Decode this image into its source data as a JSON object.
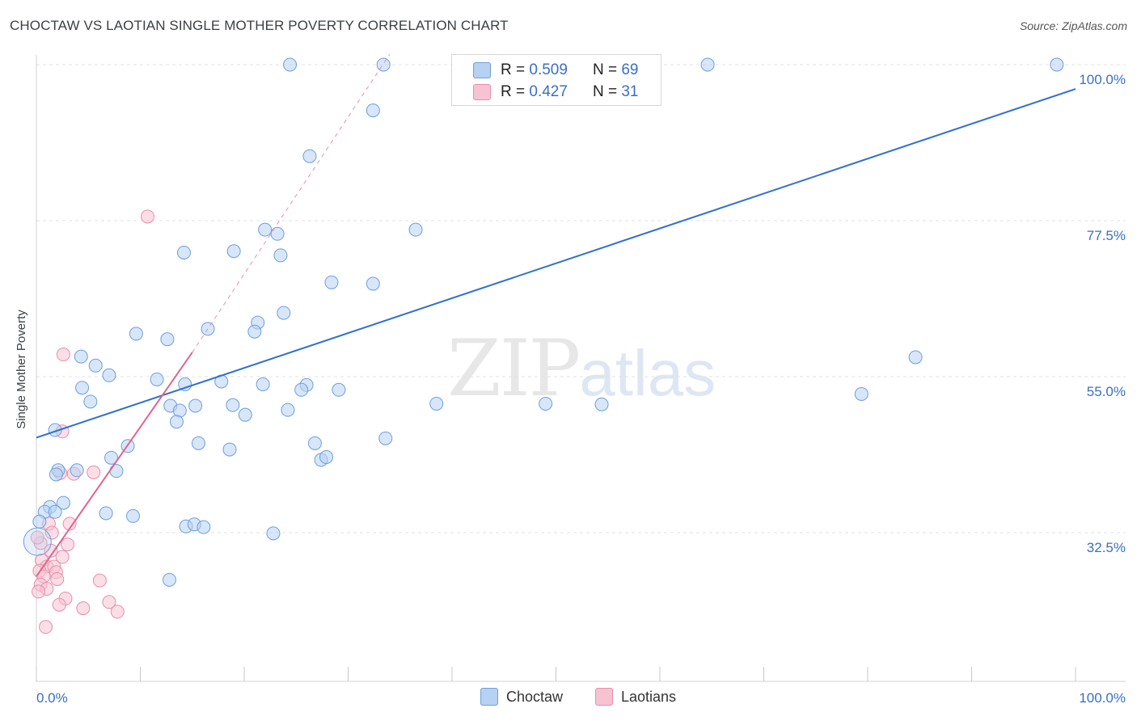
{
  "title": "CHOCTAW VS LAOTIAN SINGLE MOTHER POVERTY CORRELATION CHART",
  "source": "Source: ZipAtlas.com",
  "watermark": {
    "zip": "ZIP",
    "atlas": "atlas"
  },
  "legend": {
    "rows": [
      {
        "r_label": "R =",
        "r_value": "0.509",
        "n_label": "N =",
        "n_value": "69"
      },
      {
        "r_label": "R =",
        "r_value": "0.427",
        "n_label": "N =",
        "n_value": "31"
      }
    ]
  },
  "bottom_legend": {
    "choctaw": "Choctaw",
    "laotians": "Laotians"
  },
  "colors": {
    "choctaw_fill": "#b7d1f2",
    "choctaw_stroke": "#6d9fdc",
    "choctaw_line": "#2f6fcf",
    "laotian_fill": "#f7c2d2",
    "laotian_stroke": "#e88eab",
    "laotian_line": "#e0648f",
    "axis_label": "#3a6fc6",
    "grid": "#e2e2e2"
  },
  "chart_data": {
    "type": "scatter",
    "title": "CHOCTAW VS LAOTIAN SINGLE MOTHER POVERTY CORRELATION CHART",
    "xlabel": "",
    "ylabel": "Single Mother Poverty",
    "xlim": [
      0,
      100
    ],
    "ylim": [
      10,
      102
    ],
    "x_tick_labels": [
      "0.0%",
      "100.0%"
    ],
    "y_ticks": [
      32.5,
      55.0,
      77.5,
      100.0
    ],
    "y_tick_labels": [
      "32.5%",
      "55.0%",
      "77.5%",
      "100.0%"
    ],
    "grid": true,
    "legend_position": "top-center",
    "series": [
      {
        "name": "Choctaw",
        "r": 0.509,
        "n": 69,
        "trend": {
          "x": [
            0,
            100
          ],
          "y": [
            46.2,
            96.5
          ]
        },
        "points": [
          [
            24.4,
            100
          ],
          [
            33.4,
            100
          ],
          [
            98.2,
            100
          ],
          [
            64.6,
            100
          ],
          [
            32.4,
            93.4
          ],
          [
            26.3,
            86.8
          ],
          [
            36.5,
            76.2
          ],
          [
            22.0,
            76.2
          ],
          [
            23.2,
            75.6
          ],
          [
            19.0,
            73.1
          ],
          [
            14.2,
            72.9
          ],
          [
            23.5,
            72.5
          ],
          [
            28.4,
            68.6
          ],
          [
            32.4,
            68.4
          ],
          [
            23.8,
            64.2
          ],
          [
            21.3,
            62.8
          ],
          [
            16.5,
            61.9
          ],
          [
            21.0,
            61.5
          ],
          [
            9.6,
            61.2
          ],
          [
            12.6,
            60.4
          ],
          [
            1.8,
            47.3
          ],
          [
            4.3,
            57.9
          ],
          [
            5.7,
            56.6
          ],
          [
            7.0,
            55.2
          ],
          [
            11.6,
            54.6
          ],
          [
            17.8,
            54.3
          ],
          [
            14.3,
            53.9
          ],
          [
            21.8,
            53.9
          ],
          [
            26.0,
            53.8
          ],
          [
            4.4,
            53.4
          ],
          [
            5.2,
            51.4
          ],
          [
            12.9,
            50.8
          ],
          [
            15.3,
            50.8
          ],
          [
            13.8,
            50.1
          ],
          [
            24.2,
            50.2
          ],
          [
            18.9,
            50.9
          ],
          [
            20.1,
            49.5
          ],
          [
            25.5,
            53.1
          ],
          [
            29.1,
            53.1
          ],
          [
            38.5,
            51.1
          ],
          [
            49.0,
            51.1
          ],
          [
            54.4,
            51.0
          ],
          [
            79.4,
            52.5
          ],
          [
            84.6,
            57.8
          ],
          [
            33.6,
            46.1
          ],
          [
            15.6,
            45.4
          ],
          [
            8.8,
            45.0
          ],
          [
            18.6,
            44.5
          ],
          [
            26.8,
            45.4
          ],
          [
            13.5,
            48.5
          ],
          [
            7.2,
            43.3
          ],
          [
            27.4,
            43.0
          ],
          [
            27.9,
            43.4
          ],
          [
            7.7,
            41.4
          ],
          [
            2.1,
            41.5
          ],
          [
            3.9,
            41.5
          ],
          [
            1.9,
            40.9
          ],
          [
            2.6,
            36.8
          ],
          [
            1.3,
            36.2
          ],
          [
            0.8,
            35.5
          ],
          [
            1.8,
            35.5
          ],
          [
            6.7,
            35.3
          ],
          [
            9.3,
            34.9
          ],
          [
            14.4,
            33.4
          ],
          [
            15.2,
            33.7
          ],
          [
            16.1,
            33.3
          ],
          [
            22.8,
            32.4
          ],
          [
            12.8,
            25.7
          ],
          [
            0.3,
            34.1
          ]
        ]
      },
      {
        "name": "Laotians",
        "r": 0.427,
        "n": 31,
        "trend": {
          "x": [
            0,
            15
          ],
          "y": [
            26.2,
            58.5
          ],
          "dashed_extension": {
            "x": [
              15,
              34
            ],
            "y": [
              58.5,
              101.5
            ]
          }
        },
        "points": [
          [
            10.7,
            78.1
          ],
          [
            2.6,
            58.2
          ],
          [
            2.5,
            47.1
          ],
          [
            2.3,
            41.1
          ],
          [
            3.6,
            41.0
          ],
          [
            5.5,
            41.2
          ],
          [
            3.2,
            33.8
          ],
          [
            1.2,
            33.8
          ],
          [
            1.5,
            32.5
          ],
          [
            3.0,
            30.8
          ],
          [
            0.4,
            31.0
          ],
          [
            2.5,
            29.0
          ],
          [
            0.5,
            28.5
          ],
          [
            1.0,
            27.6
          ],
          [
            1.7,
            27.6
          ],
          [
            0.3,
            27.0
          ],
          [
            1.9,
            26.8
          ],
          [
            0.7,
            26.2
          ],
          [
            2.0,
            25.8
          ],
          [
            6.1,
            25.6
          ],
          [
            0.4,
            25.0
          ],
          [
            1.0,
            24.4
          ],
          [
            0.2,
            24.0
          ],
          [
            2.8,
            23.0
          ],
          [
            7.0,
            22.5
          ],
          [
            2.2,
            22.1
          ],
          [
            4.5,
            21.6
          ],
          [
            7.8,
            21.1
          ],
          [
            0.9,
            18.9
          ],
          [
            0.1,
            31.8
          ],
          [
            1.4,
            29.9
          ]
        ]
      }
    ]
  }
}
